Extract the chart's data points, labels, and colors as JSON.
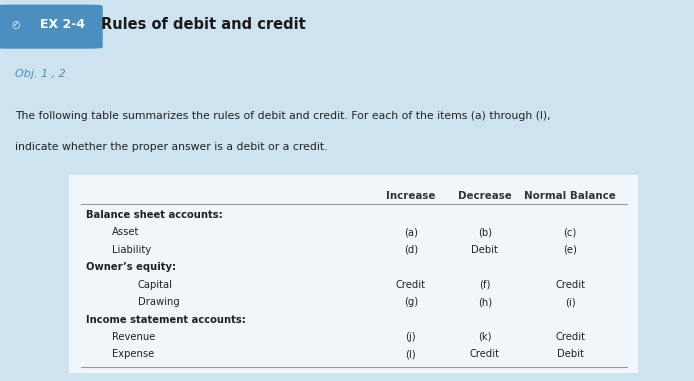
{
  "title": "Rules of debit and credit",
  "ex_label": "EX 2-4",
  "obj_label": "Obj. 1 , 2",
  "description_line1": "The following table summarizes the rules of debit and credit. For each of the items (a) through (l),",
  "description_line2": "indicate whether the proper answer is a debit or a credit.",
  "col_headers": [
    "Increase",
    "Decrease",
    "Normal Balance"
  ],
  "rows": [
    {
      "label": "Balance sheet accounts:",
      "indent": 0,
      "bold": true,
      "values": [
        "",
        "",
        ""
      ]
    },
    {
      "label": "Asset",
      "indent": 1,
      "bold": false,
      "values": [
        "(a)",
        "(b)",
        "(c)"
      ]
    },
    {
      "label": "Liability",
      "indent": 1,
      "bold": false,
      "values": [
        "(d)",
        "Debit",
        "(e)"
      ]
    },
    {
      "label": "Owner’s equity:",
      "indent": 0,
      "bold": true,
      "values": [
        "",
        "",
        ""
      ]
    },
    {
      "label": "Capital",
      "indent": 2,
      "bold": false,
      "values": [
        "Credit",
        "(f)",
        "Credit"
      ]
    },
    {
      "label": "Drawing",
      "indent": 2,
      "bold": false,
      "values": [
        "(g)",
        "(h)",
        "(i)"
      ]
    },
    {
      "label": "Income statement accounts:",
      "indent": 0,
      "bold": true,
      "values": [
        "",
        "",
        ""
      ]
    },
    {
      "label": "Revenue",
      "indent": 1,
      "bold": false,
      "values": [
        "(j)",
        "(k)",
        "Credit"
      ]
    },
    {
      "label": "Expense",
      "indent": 1,
      "bold": false,
      "values": [
        "(l)",
        "Credit",
        "Debit"
      ]
    }
  ],
  "bg_color": "#cde4f0",
  "card_color": "#f2f6fa",
  "ex_box_color": "#4a8fc0",
  "obj_color": "#4a8fc0",
  "title_color": "#1a1a1a",
  "body_color": "#222222",
  "table_line_color": "#999999",
  "header_text_color": "#333333",
  "font_size_title": 10.5,
  "font_size_body": 7.8,
  "font_size_obj": 8,
  "font_size_table": 7.2,
  "font_size_table_header": 7.4
}
